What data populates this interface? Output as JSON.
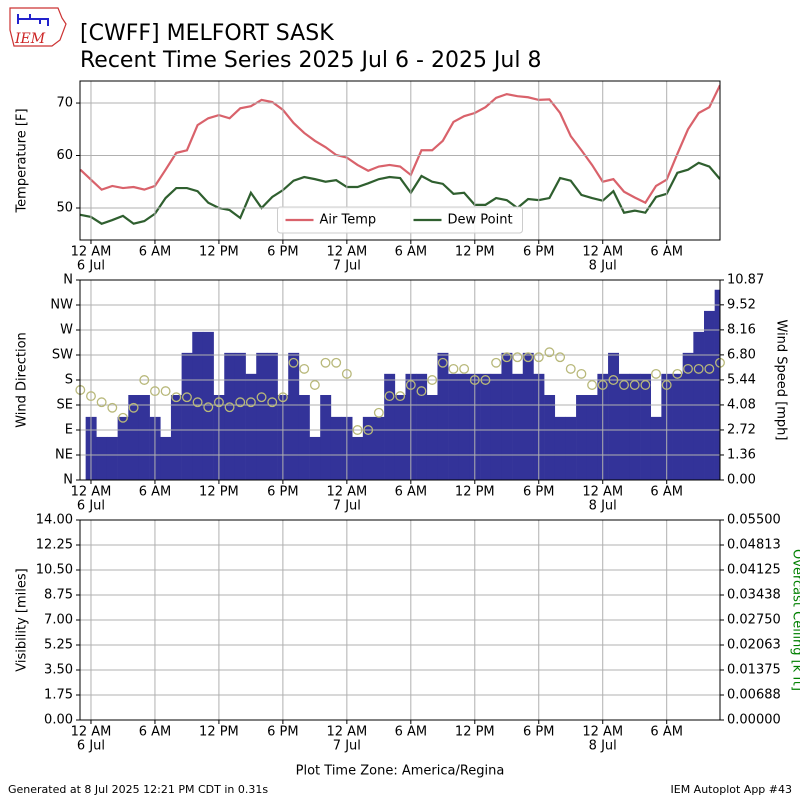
{
  "header": {
    "title": "[CWFF] MELFORT  SASK",
    "subtitle": "Recent Time Series 2025 Jul 6 - 2025 Jul 8",
    "logo_text": "IEM"
  },
  "footer": {
    "left": "Generated at 8 Jul 2025 12:21 PM CDT in 0.31s",
    "right": "IEM Autoplot App #43"
  },
  "chart_data": [
    {
      "type": "line",
      "ylabel": "Temperature [F]",
      "grid": true,
      "legend": "lower center",
      "xlim": [
        -1.03,
        59
      ],
      "ylim": [
        43.9,
        74.2
      ],
      "yticks": [
        50,
        60,
        70
      ],
      "xticks": [
        {
          "value": 0,
          "label": "12 AM"
        },
        {
          "value": 6,
          "label": "6 AM"
        },
        {
          "value": 12,
          "label": "12 PM"
        },
        {
          "value": 18,
          "label": "6 PM"
        },
        {
          "value": 24,
          "label": "12 AM"
        },
        {
          "value": 30,
          "label": "6 AM"
        },
        {
          "value": 36,
          "label": "12 PM"
        },
        {
          "value": 42,
          "label": "6 PM"
        },
        {
          "value": 48,
          "label": "12 AM"
        },
        {
          "value": 54,
          "label": "6 AM"
        }
      ],
      "xtick_dates": [
        {
          "value": 0,
          "label": "6 Jul"
        },
        {
          "value": 24,
          "label": "7 Jul"
        },
        {
          "value": 48,
          "label": "8 Jul"
        }
      ],
      "x": [
        -1,
        0,
        1,
        2,
        3,
        4,
        5,
        6,
        7,
        8,
        9,
        10,
        11,
        12,
        13,
        14,
        15,
        16,
        17,
        18,
        19,
        20,
        21,
        22,
        23,
        24,
        25,
        26,
        27,
        28,
        29,
        30,
        31,
        32,
        33,
        34,
        35,
        36,
        37,
        38,
        39,
        40,
        41,
        42,
        43,
        44,
        45,
        46,
        47,
        48,
        49,
        50,
        51,
        52,
        53,
        54,
        55,
        56,
        57,
        58,
        59
      ],
      "series": [
        {
          "name": "Air Temp",
          "color": "#d9626b",
          "values": [
            57.3,
            55.4,
            53.5,
            54.2,
            53.8,
            54,
            53.5,
            54.2,
            57.3,
            60.5,
            61,
            65.8,
            67.1,
            67.7,
            67.1,
            69,
            69.4,
            70.6,
            70.2,
            68.7,
            66.2,
            64.3,
            62.8,
            61.6,
            60.1,
            59.6,
            58.2,
            57.1,
            57.9,
            58.2,
            57.9,
            56.3,
            61,
            61,
            62.8,
            66.4,
            67.5,
            68.1,
            69.2,
            71,
            71.7,
            71.3,
            71.1,
            70.6,
            70.7,
            68.1,
            63.7,
            61,
            58.2,
            55,
            55.5,
            53.1,
            52,
            51,
            54.2,
            55.4,
            60.3,
            65,
            68.1,
            69.2,
            73.4
          ]
        },
        {
          "name": "Dew Point",
          "color": "#2f5f2f",
          "values": [
            48.7,
            48.3,
            47,
            47.7,
            48.5,
            47,
            47.5,
            48.9,
            51.9,
            53.8,
            53.8,
            53.2,
            51,
            50,
            49.6,
            48.1,
            52.9,
            50,
            52.1,
            53.4,
            55.2,
            55.9,
            55.5,
            55,
            55.3,
            54,
            54,
            54.7,
            55.5,
            55.9,
            55.7,
            52.9,
            56.1,
            55,
            54.6,
            52.7,
            52.9,
            50.6,
            50.6,
            51.9,
            51.5,
            50,
            51.7,
            51.5,
            51.9,
            55.7,
            55.2,
            52.5,
            51.9,
            51.4,
            53.2,
            49.1,
            49.5,
            49.1,
            52.1,
            52.7,
            56.7,
            57.3,
            58.6,
            57.9,
            55.5
          ]
        }
      ]
    },
    {
      "type": "bar",
      "ylabel": "Wind Direction",
      "y2label": "Wind Speed [mph]",
      "grid": true,
      "xlim": [
        -1.03,
        59
      ],
      "ylim": [
        0,
        360
      ],
      "yticks": [
        {
          "value": 0,
          "label": "N"
        },
        {
          "value": 45,
          "label": "NE"
        },
        {
          "value": 90,
          "label": "E"
        },
        {
          "value": 135,
          "label": "SE"
        },
        {
          "value": 180,
          "label": "S"
        },
        {
          "value": 225,
          "label": "SW"
        },
        {
          "value": 270,
          "label": "W"
        },
        {
          "value": 315,
          "label": "NW"
        },
        {
          "value": 360,
          "label": "N"
        }
      ],
      "y2lim": [
        0,
        10.87
      ],
      "y2ticks": [
        {
          "value": 0,
          "label": "0.00"
        },
        1.36,
        2.72,
        4.08,
        5.44,
        {
          "value": 6.8,
          "label": "6.80"
        },
        8.16,
        9.52,
        10.87
      ],
      "xticks": [
        {
          "value": 0,
          "label": "12 AM"
        },
        {
          "value": 6,
          "label": "6 AM"
        },
        {
          "value": 12,
          "label": "12 PM"
        },
        {
          "value": 18,
          "label": "6 PM"
        },
        {
          "value": 24,
          "label": "12 AM"
        },
        {
          "value": 30,
          "label": "6 AM"
        },
        {
          "value": 36,
          "label": "12 PM"
        },
        {
          "value": 42,
          "label": "6 PM"
        },
        {
          "value": 48,
          "label": "12 AM"
        },
        {
          "value": 54,
          "label": "6 AM"
        }
      ],
      "xtick_dates": [
        {
          "value": 0,
          "label": "6 Jul"
        },
        {
          "value": 24,
          "label": "7 Jul"
        },
        {
          "value": 48,
          "label": "8 Jul"
        }
      ],
      "x": [
        -1,
        0,
        1,
        2,
        3,
        4,
        5,
        6,
        7,
        8,
        9,
        10,
        11,
        12,
        13,
        14,
        15,
        16,
        17,
        18,
        19,
        20,
        21,
        22,
        23,
        24,
        25,
        26,
        27,
        28,
        29,
        30,
        31,
        32,
        33,
        34,
        35,
        36,
        37,
        38,
        39,
        40,
        41,
        42,
        43,
        44,
        45,
        46,
        47,
        48,
        49,
        50,
        51,
        52,
        53,
        54,
        55,
        56,
        57,
        58,
        59
      ],
      "series": [
        {
          "color": "#333399",
          "axis": "y2",
          "values": [
            null,
            3.43,
            2.34,
            2.34,
            3.43,
            4.62,
            4.62,
            3.43,
            2.34,
            4.62,
            6.91,
            8.05,
            8.05,
            4.62,
            6.91,
            6.91,
            5.77,
            6.91,
            6.91,
            4.62,
            6.91,
            4.62,
            2.34,
            4.62,
            3.43,
            3.43,
            2.34,
            3.43,
            3.43,
            5.77,
            4.62,
            5.77,
            5.77,
            4.62,
            6.91,
            5.77,
            5.77,
            5.77,
            5.77,
            5.77,
            6.91,
            5.77,
            6.91,
            5.77,
            4.62,
            3.43,
            3.43,
            4.62,
            4.62,
            5.77,
            6.91,
            5.77,
            5.77,
            5.77,
            3.43,
            5.77,
            5.77,
            6.91,
            8.05,
            9.19,
            10.34
          ]
        },
        {
          "color": "#b8b87a",
          "values": [
            162,
            151,
            140,
            130,
            112,
            130,
            180,
            160,
            160,
            149,
            149,
            140,
            131,
            140,
            131,
            140,
            140,
            149,
            140,
            149,
            211,
            200,
            171,
            211,
            211,
            191,
            90,
            90,
            121,
            151,
            151,
            171,
            160,
            180,
            211,
            200,
            200,
            180,
            180,
            211,
            221,
            221,
            221,
            221,
            230,
            221,
            200,
            191,
            171,
            171,
            180,
            171,
            171,
            171,
            191,
            171,
            191,
            200,
            200,
            200,
            211
          ]
        }
      ]
    },
    {
      "type": "line",
      "ylabel": "Visibility [miles]",
      "y2label": "Overcast Ceiling [k ft]",
      "y2color": "#008000",
      "grid": true,
      "xlabel": "Plot Time Zone: America/Regina",
      "xlim": [
        -1.03,
        59
      ],
      "ylim": [
        0,
        14
      ],
      "yticks": [
        {
          "value": 0,
          "label": "0.00"
        },
        1.75,
        {
          "value": 3.5,
          "label": "3.50"
        },
        5.25,
        {
          "value": 7,
          "label": "7.00"
        },
        8.75,
        {
          "value": 10.5,
          "label": "10.50"
        },
        12.25,
        {
          "value": 14,
          "label": "14.00"
        }
      ],
      "y2lim": [
        0,
        0.055
      ],
      "y2ticks": [
        {
          "value": 0,
          "label": "0.00000"
        },
        {
          "value": 0.006875,
          "label": "0.00688"
        },
        {
          "value": 0.01375,
          "label": "0.01375"
        },
        {
          "value": 0.020625,
          "label": "0.02063"
        },
        {
          "value": 0.0275,
          "label": "0.02750"
        },
        {
          "value": 0.034375,
          "label": "0.03438"
        },
        {
          "value": 0.04125,
          "label": "0.04125"
        },
        {
          "value": 0.048125,
          "label": "0.04813"
        },
        {
          "value": 0.055,
          "label": "0.05500"
        }
      ],
      "xticks": [
        {
          "value": 0,
          "label": "12 AM"
        },
        {
          "value": 6,
          "label": "6 AM"
        },
        {
          "value": 12,
          "label": "12 PM"
        },
        {
          "value": 18,
          "label": "6 PM"
        },
        {
          "value": 24,
          "label": "12 AM"
        },
        {
          "value": 30,
          "label": "6 AM"
        },
        {
          "value": 36,
          "label": "12 PM"
        },
        {
          "value": 42,
          "label": "6 PM"
        },
        {
          "value": 48,
          "label": "12 AM"
        },
        {
          "value": 54,
          "label": "6 AM"
        }
      ],
      "xtick_dates": [
        {
          "value": 0,
          "label": "6 Jul"
        },
        {
          "value": 24,
          "label": "7 Jul"
        },
        {
          "value": 48,
          "label": "8 Jul"
        }
      ]
    }
  ]
}
